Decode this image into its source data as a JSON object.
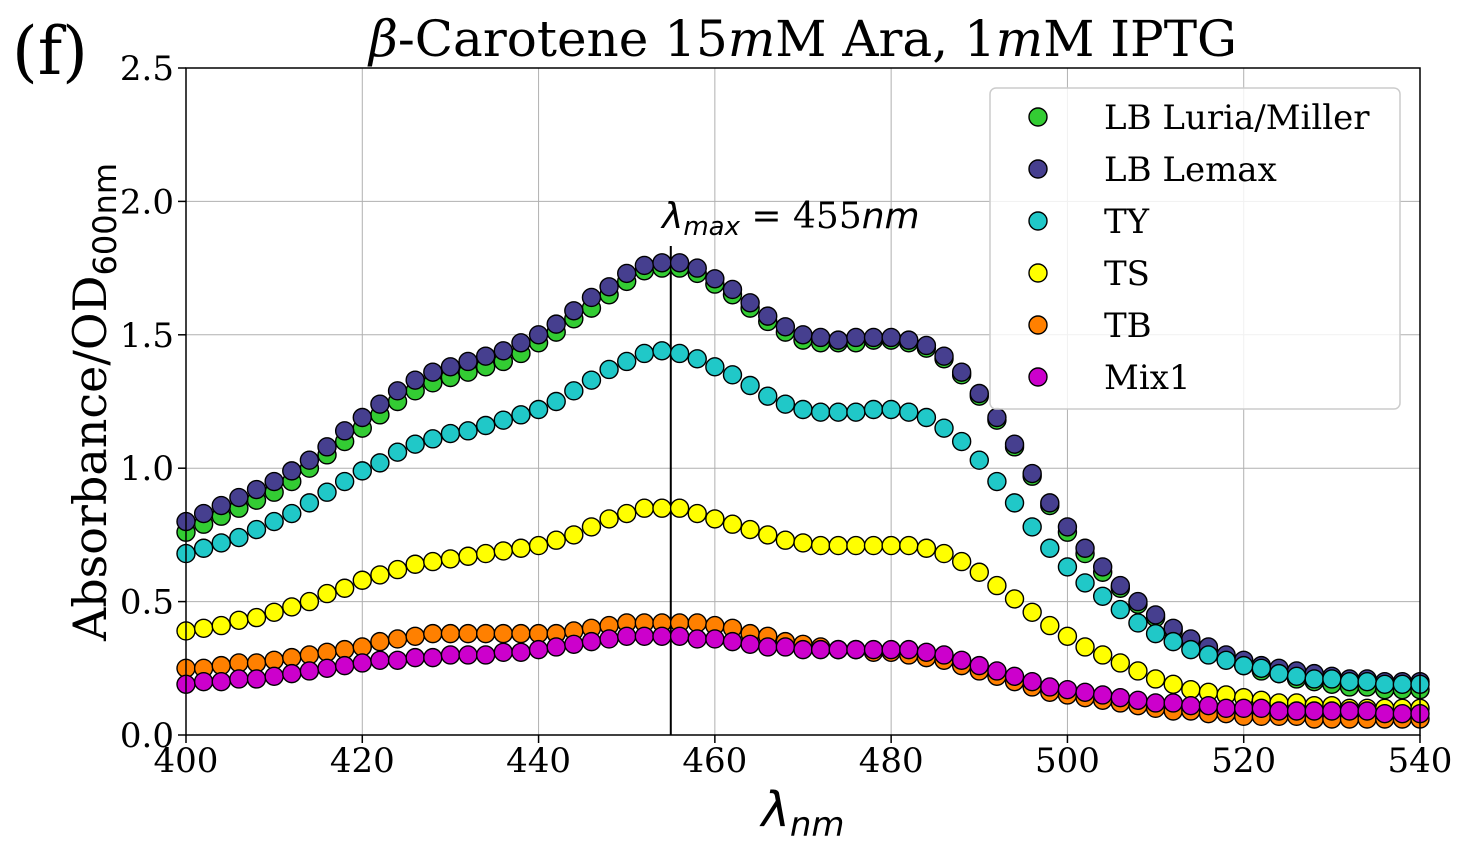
{
  "panel_label": "(f)",
  "chart_data": {
    "type": "scatter",
    "title": "β-Carotene  15mM Ara, 1mM IPTG",
    "title_parts": {
      "beta": "β",
      "text1": "-Carotene  15",
      "m1": "m",
      "text2": "M Ara, 1",
      "m2": "m",
      "text3": "M IPTG"
    },
    "xlabel": {
      "main": "λ",
      "sub": "nm"
    },
    "ylabel": {
      "main": "Absorbance/OD",
      "sub": "600nm"
    },
    "xlim": [
      400,
      540
    ],
    "ylim": [
      0.0,
      2.5
    ],
    "xticks": [
      400,
      420,
      440,
      460,
      480,
      500,
      520,
      540
    ],
    "yticks": [
      "0.0",
      "0.5",
      "1.0",
      "1.5",
      "2.0",
      "2.5"
    ],
    "grid": true,
    "legend_position": "top-right",
    "annotation": {
      "lambda": "λ",
      "sub": "max",
      "text": " = 455",
      "unit": "nm",
      "x": 455
    },
    "x": [
      400,
      402,
      404,
      406,
      408,
      410,
      412,
      414,
      416,
      418,
      420,
      422,
      424,
      426,
      428,
      430,
      432,
      434,
      436,
      438,
      440,
      442,
      444,
      446,
      448,
      450,
      452,
      454,
      456,
      458,
      460,
      462,
      464,
      466,
      468,
      470,
      472,
      474,
      476,
      478,
      480,
      482,
      484,
      486,
      488,
      490,
      492,
      494,
      496,
      498,
      500,
      502,
      504,
      506,
      508,
      510,
      512,
      514,
      516,
      518,
      520,
      522,
      524,
      526,
      528,
      530,
      532,
      534,
      536,
      538,
      540
    ],
    "series": [
      {
        "name": "LB Luria/Miller",
        "color": "#33cc33",
        "values": [
          0.76,
          0.79,
          0.82,
          0.85,
          0.88,
          0.91,
          0.95,
          1.0,
          1.05,
          1.1,
          1.15,
          1.2,
          1.25,
          1.29,
          1.32,
          1.34,
          1.36,
          1.38,
          1.4,
          1.43,
          1.47,
          1.51,
          1.56,
          1.6,
          1.65,
          1.7,
          1.74,
          1.75,
          1.75,
          1.73,
          1.69,
          1.65,
          1.6,
          1.55,
          1.51,
          1.48,
          1.47,
          1.47,
          1.47,
          1.48,
          1.48,
          1.47,
          1.45,
          1.41,
          1.35,
          1.27,
          1.18,
          1.08,
          0.97,
          0.86,
          0.76,
          0.68,
          0.61,
          0.55,
          0.49,
          0.44,
          0.39,
          0.35,
          0.32,
          0.29,
          0.26,
          0.24,
          0.23,
          0.21,
          0.2,
          0.19,
          0.18,
          0.18,
          0.17,
          0.17,
          0.17
        ]
      },
      {
        "name": "LB Lemax",
        "color": "#463f8f",
        "values": [
          0.8,
          0.83,
          0.86,
          0.89,
          0.92,
          0.95,
          0.99,
          1.03,
          1.08,
          1.14,
          1.19,
          1.24,
          1.29,
          1.33,
          1.36,
          1.38,
          1.4,
          1.42,
          1.44,
          1.47,
          1.5,
          1.54,
          1.59,
          1.64,
          1.68,
          1.73,
          1.76,
          1.77,
          1.77,
          1.75,
          1.71,
          1.67,
          1.62,
          1.57,
          1.53,
          1.5,
          1.49,
          1.48,
          1.49,
          1.49,
          1.49,
          1.48,
          1.46,
          1.42,
          1.36,
          1.28,
          1.19,
          1.09,
          0.98,
          0.87,
          0.78,
          0.7,
          0.63,
          0.56,
          0.5,
          0.45,
          0.4,
          0.36,
          0.33,
          0.3,
          0.28,
          0.26,
          0.25,
          0.24,
          0.23,
          0.22,
          0.21,
          0.21,
          0.2,
          0.2,
          0.2
        ]
      },
      {
        "name": "TY",
        "color": "#20c8c8",
        "values": [
          0.68,
          0.7,
          0.72,
          0.74,
          0.77,
          0.8,
          0.83,
          0.87,
          0.91,
          0.95,
          0.99,
          1.02,
          1.06,
          1.09,
          1.11,
          1.13,
          1.14,
          1.16,
          1.18,
          1.2,
          1.22,
          1.25,
          1.29,
          1.33,
          1.37,
          1.4,
          1.43,
          1.44,
          1.43,
          1.41,
          1.38,
          1.35,
          1.31,
          1.27,
          1.24,
          1.22,
          1.21,
          1.21,
          1.21,
          1.22,
          1.22,
          1.21,
          1.19,
          1.15,
          1.1,
          1.03,
          0.95,
          0.87,
          0.78,
          0.7,
          0.63,
          0.57,
          0.52,
          0.47,
          0.42,
          0.38,
          0.35,
          0.32,
          0.3,
          0.28,
          0.26,
          0.25,
          0.23,
          0.22,
          0.21,
          0.21,
          0.2,
          0.2,
          0.19,
          0.19,
          0.19
        ]
      },
      {
        "name": "TS",
        "color": "#ffff00",
        "values": [
          0.39,
          0.4,
          0.41,
          0.43,
          0.44,
          0.46,
          0.48,
          0.5,
          0.53,
          0.55,
          0.58,
          0.6,
          0.62,
          0.64,
          0.65,
          0.66,
          0.67,
          0.68,
          0.69,
          0.7,
          0.71,
          0.73,
          0.75,
          0.78,
          0.81,
          0.83,
          0.85,
          0.85,
          0.85,
          0.83,
          0.81,
          0.79,
          0.77,
          0.75,
          0.73,
          0.72,
          0.71,
          0.71,
          0.71,
          0.71,
          0.71,
          0.71,
          0.7,
          0.68,
          0.65,
          0.61,
          0.56,
          0.51,
          0.46,
          0.41,
          0.37,
          0.33,
          0.3,
          0.27,
          0.24,
          0.21,
          0.19,
          0.17,
          0.16,
          0.15,
          0.14,
          0.13,
          0.12,
          0.12,
          0.11,
          0.11,
          0.1,
          0.1,
          0.1,
          0.1,
          0.1
        ]
      },
      {
        "name": "TB",
        "color": "#ff8000",
        "values": [
          0.25,
          0.25,
          0.26,
          0.27,
          0.27,
          0.28,
          0.29,
          0.3,
          0.31,
          0.32,
          0.33,
          0.35,
          0.36,
          0.37,
          0.38,
          0.38,
          0.38,
          0.38,
          0.38,
          0.38,
          0.38,
          0.38,
          0.39,
          0.4,
          0.41,
          0.42,
          0.42,
          0.42,
          0.42,
          0.42,
          0.41,
          0.4,
          0.38,
          0.37,
          0.35,
          0.34,
          0.33,
          0.32,
          0.32,
          0.31,
          0.31,
          0.3,
          0.29,
          0.28,
          0.26,
          0.24,
          0.22,
          0.2,
          0.18,
          0.16,
          0.15,
          0.14,
          0.13,
          0.12,
          0.11,
          0.1,
          0.09,
          0.09,
          0.08,
          0.08,
          0.07,
          0.07,
          0.07,
          0.07,
          0.06,
          0.06,
          0.06,
          0.06,
          0.06,
          0.06,
          0.06
        ]
      },
      {
        "name": "Mix1",
        "color": "#cc00cc",
        "values": [
          0.19,
          0.2,
          0.2,
          0.21,
          0.21,
          0.22,
          0.23,
          0.24,
          0.25,
          0.26,
          0.27,
          0.28,
          0.28,
          0.29,
          0.29,
          0.3,
          0.3,
          0.3,
          0.31,
          0.31,
          0.32,
          0.33,
          0.34,
          0.35,
          0.36,
          0.37,
          0.37,
          0.37,
          0.37,
          0.36,
          0.36,
          0.35,
          0.34,
          0.33,
          0.33,
          0.32,
          0.32,
          0.32,
          0.32,
          0.32,
          0.32,
          0.32,
          0.31,
          0.3,
          0.28,
          0.26,
          0.24,
          0.22,
          0.2,
          0.18,
          0.17,
          0.16,
          0.15,
          0.14,
          0.13,
          0.12,
          0.12,
          0.11,
          0.11,
          0.1,
          0.1,
          0.1,
          0.09,
          0.09,
          0.09,
          0.09,
          0.09,
          0.09,
          0.08,
          0.08,
          0.08
        ]
      }
    ]
  }
}
